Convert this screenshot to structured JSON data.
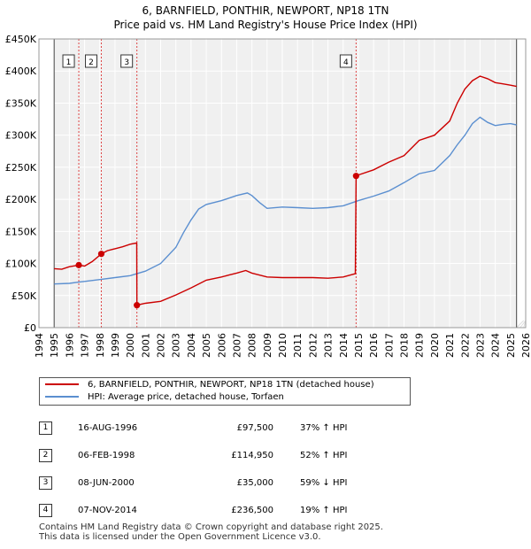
{
  "title_line1": "6, BARNFIELD, PONTHIR, NEWPORT, NP18 1TN",
  "title_line2": "Price paid vs. HM Land Registry's House Price Index (HPI)",
  "colors": {
    "property": "#cc0000",
    "hpi": "#5b8fd0",
    "sale_marker": "#cc0000",
    "vline": "#dd4444"
  },
  "chart_data": {
    "type": "line",
    "title": "6, BARNFIELD, PONTHIR, NEWPORT, NP18 1TN — Price paid vs. HM Land Registry's House Price Index (HPI)",
    "xlim": [
      1994,
      2026
    ],
    "ylim": [
      0,
      450000
    ],
    "x_ticks": [
      1994,
      1995,
      1996,
      1997,
      1998,
      1999,
      2000,
      2001,
      2002,
      2003,
      2004,
      2005,
      2006,
      2007,
      2008,
      2009,
      2010,
      2011,
      2012,
      2013,
      2014,
      2015,
      2016,
      2017,
      2018,
      2019,
      2020,
      2021,
      2022,
      2023,
      2024,
      2025,
      2026
    ],
    "y_ticks": [
      {
        "value": 0,
        "label": "£0"
      },
      {
        "value": 50000,
        "label": "£50K"
      },
      {
        "value": 100000,
        "label": "£100K"
      },
      {
        "value": 150000,
        "label": "£150K"
      },
      {
        "value": 200000,
        "label": "£200K"
      },
      {
        "value": 250000,
        "label": "£250K"
      },
      {
        "value": 300000,
        "label": "£300K"
      },
      {
        "value": 350000,
        "label": "£350K"
      },
      {
        "value": 400000,
        "label": "£400K"
      },
      {
        "value": 450000,
        "label": "£450K"
      }
    ],
    "data_start": 1995.0,
    "data_end": 2025.4,
    "series": [
      {
        "name": "6, BARNFIELD, PONTHIR, NEWPORT, NP18 1TN (detached house)",
        "color": "#cc0000",
        "points": [
          [
            1995.0,
            92000
          ],
          [
            1995.5,
            91000
          ],
          [
            1996.0,
            95000
          ],
          [
            1996.62,
            97500
          ],
          [
            1997.0,
            96000
          ],
          [
            1997.5,
            103000
          ],
          [
            1998.1,
            114950
          ],
          [
            1998.5,
            120000
          ],
          [
            1999.0,
            123000
          ],
          [
            1999.5,
            126000
          ],
          [
            2000.0,
            130000
          ],
          [
            2000.43,
            132000
          ],
          [
            2000.44,
            35000
          ],
          [
            2001.0,
            38000
          ],
          [
            2002.0,
            41000
          ],
          [
            2003.0,
            51000
          ],
          [
            2004.0,
            62000
          ],
          [
            2005.0,
            74000
          ],
          [
            2006.0,
            79000
          ],
          [
            2006.5,
            82000
          ],
          [
            2007.0,
            85000
          ],
          [
            2007.6,
            89000
          ],
          [
            2008.0,
            85000
          ],
          [
            2009.0,
            79000
          ],
          [
            2010.0,
            78000
          ],
          [
            2011.0,
            78000
          ],
          [
            2012.0,
            78000
          ],
          [
            2013.0,
            77000
          ],
          [
            2014.0,
            79000
          ],
          [
            2014.8,
            84000
          ],
          [
            2014.85,
            236500
          ],
          [
            2015.0,
            238000
          ],
          [
            2016.0,
            246000
          ],
          [
            2017.0,
            258000
          ],
          [
            2018.0,
            268000
          ],
          [
            2019.0,
            292000
          ],
          [
            2020.0,
            300000
          ],
          [
            2021.0,
            322000
          ],
          [
            2021.5,
            350000
          ],
          [
            2022.0,
            372000
          ],
          [
            2022.5,
            385000
          ],
          [
            2023.0,
            392000
          ],
          [
            2023.5,
            388000
          ],
          [
            2024.0,
            382000
          ],
          [
            2024.5,
            380000
          ],
          [
            2025.0,
            378000
          ],
          [
            2025.4,
            376000
          ]
        ]
      },
      {
        "name": "HPI: Average price, detached house, Torfaen",
        "color": "#5b8fd0",
        "points": [
          [
            1995.0,
            68000
          ],
          [
            1996.0,
            69000
          ],
          [
            1996.62,
            71000
          ],
          [
            1997.0,
            72000
          ],
          [
            1998.0,
            75000
          ],
          [
            1999.0,
            78000
          ],
          [
            2000.0,
            81000
          ],
          [
            2001.0,
            88000
          ],
          [
            2002.0,
            100000
          ],
          [
            2003.0,
            125000
          ],
          [
            2003.5,
            148000
          ],
          [
            2004.0,
            168000
          ],
          [
            2004.5,
            185000
          ],
          [
            2005.0,
            192000
          ],
          [
            2006.0,
            198000
          ],
          [
            2007.0,
            206000
          ],
          [
            2007.7,
            210000
          ],
          [
            2008.0,
            206000
          ],
          [
            2008.5,
            195000
          ],
          [
            2009.0,
            186000
          ],
          [
            2010.0,
            188000
          ],
          [
            2011.0,
            187000
          ],
          [
            2012.0,
            186000
          ],
          [
            2013.0,
            187000
          ],
          [
            2014.0,
            190000
          ],
          [
            2015.0,
            198000
          ],
          [
            2016.0,
            205000
          ],
          [
            2017.0,
            213000
          ],
          [
            2018.0,
            226000
          ],
          [
            2019.0,
            240000
          ],
          [
            2020.0,
            245000
          ],
          [
            2021.0,
            268000
          ],
          [
            2021.5,
            285000
          ],
          [
            2022.0,
            300000
          ],
          [
            2022.5,
            318000
          ],
          [
            2023.0,
            328000
          ],
          [
            2023.5,
            320000
          ],
          [
            2024.0,
            315000
          ],
          [
            2024.5,
            317000
          ],
          [
            2025.0,
            318000
          ],
          [
            2025.4,
            316000
          ]
        ]
      }
    ],
    "sales": [
      {
        "id": "1",
        "year": 1996.62,
        "price": 97500
      },
      {
        "id": "2",
        "year": 1998.1,
        "price": 114950
      },
      {
        "id": "3",
        "year": 2000.44,
        "price": 35000
      },
      {
        "id": "4",
        "year": 2014.85,
        "price": 236500
      }
    ]
  },
  "legend": {
    "property": "6, BARNFIELD, PONTHIR, NEWPORT, NP18 1TN (detached house)",
    "hpi": "HPI: Average price, detached house, Torfaen"
  },
  "transactions": [
    {
      "id": "1",
      "date": "16-AUG-1996",
      "price": "£97,500",
      "hpi": "37% ↑ HPI"
    },
    {
      "id": "2",
      "date": "06-FEB-1998",
      "price": "£114,950",
      "hpi": "52% ↑ HPI"
    },
    {
      "id": "3",
      "date": "08-JUN-2000",
      "price": "£35,000",
      "hpi": "59% ↓ HPI"
    },
    {
      "id": "4",
      "date": "07-NOV-2014",
      "price": "£236,500",
      "hpi": "19% ↑ HPI"
    }
  ],
  "footer": {
    "line1": "Contains HM Land Registry data © Crown copyright and database right 2025.",
    "line2": "This data is licensed under the Open Government Licence v3.0."
  }
}
